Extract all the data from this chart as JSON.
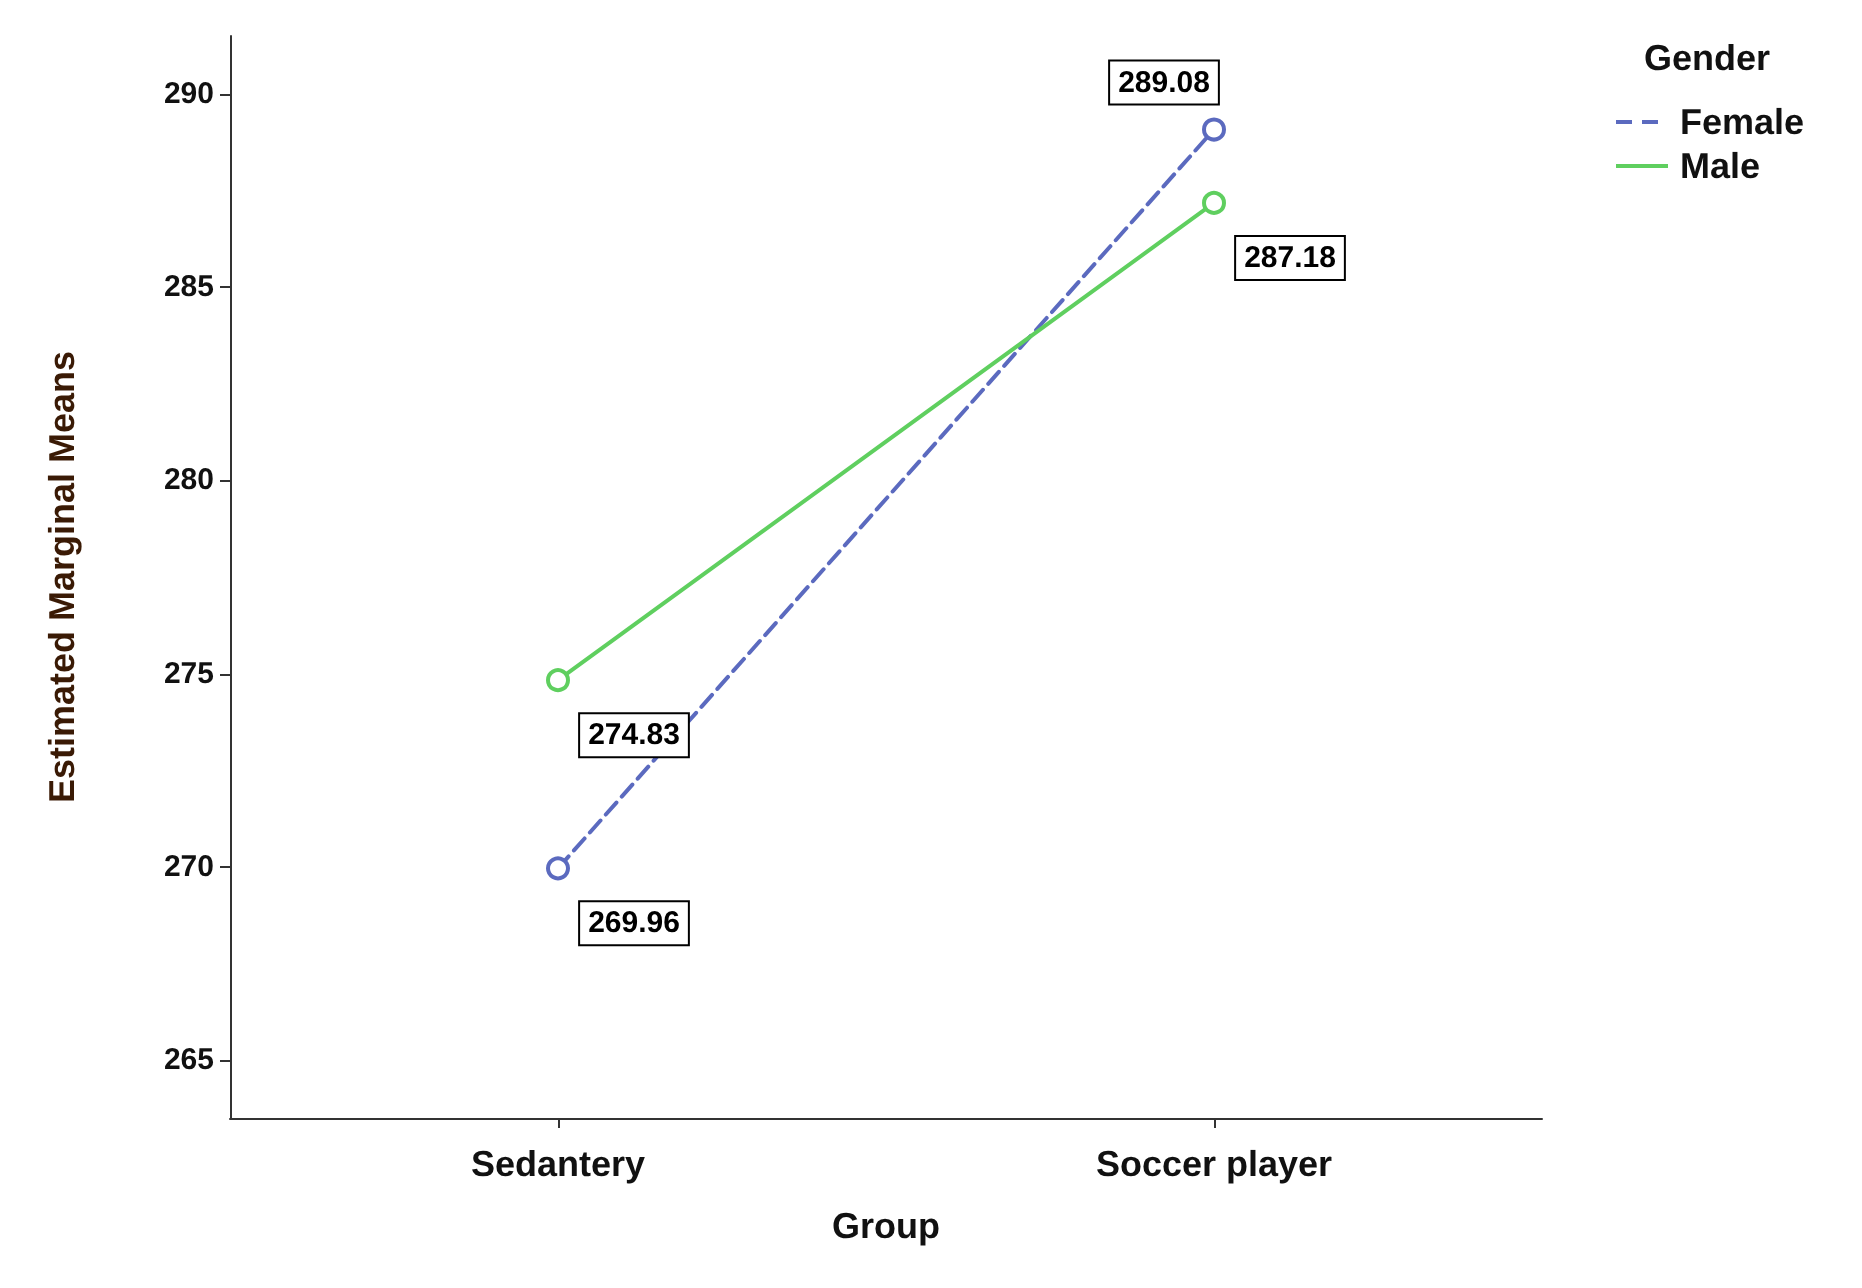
{
  "chart_data": {
    "type": "line",
    "xlabel": "Group",
    "ylabel": "Estimated Marginal Means",
    "legend_title": "Gender",
    "categories": [
      "Sedantery",
      "Soccer player"
    ],
    "series": [
      {
        "name": "Female",
        "color": "#5b6abf",
        "line_style": "dashed",
        "values": [
          269.96,
          289.08
        ]
      },
      {
        "name": "Male",
        "color": "#5fcf5f",
        "line_style": "solid",
        "values": [
          274.83,
          287.18
        ]
      }
    ],
    "ylim": [
      263.5,
      291.5
    ],
    "yticks": [
      265,
      270,
      275,
      280,
      285,
      290
    ],
    "grid": false,
    "legend": "top right",
    "marker": "circle",
    "data_labels": true
  }
}
